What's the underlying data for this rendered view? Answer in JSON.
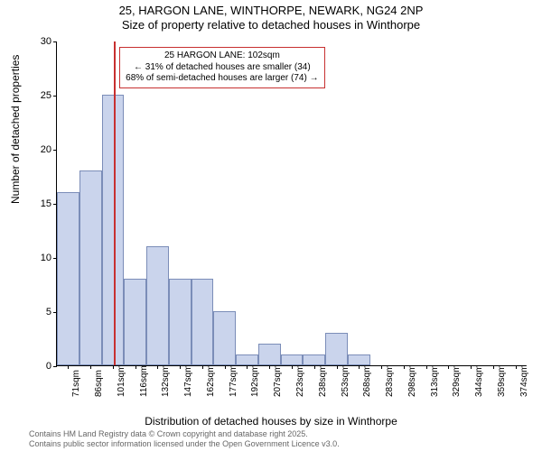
{
  "title": {
    "line1": "25, HARGON LANE, WINTHORPE, NEWARK, NG24 2NP",
    "line2": "Size of property relative to detached houses in Winthorpe"
  },
  "ylabel": "Number of detached properties",
  "xlabel": "Distribution of detached houses by size in Winthorpe",
  "footer": {
    "line1": "Contains HM Land Registry data © Crown copyright and database right 2025.",
    "line2": "Contains public sector information licensed under the Open Government Licence v3.0."
  },
  "chart": {
    "type": "bar",
    "ylim": [
      0,
      30
    ],
    "ytick_step": 5,
    "yticks": [
      0,
      5,
      10,
      15,
      20,
      25,
      30
    ],
    "categories": [
      "71sqm",
      "86sqm",
      "101sqm",
      "116sqm",
      "132sqm",
      "147sqm",
      "162sqm",
      "177sqm",
      "192sqm",
      "207sqm",
      "223sqm",
      "238sqm",
      "253sqm",
      "268sqm",
      "283sqm",
      "298sqm",
      "313sqm",
      "329sqm",
      "344sqm",
      "359sqm",
      "374sqm"
    ],
    "values": [
      16,
      18,
      25,
      8,
      11,
      8,
      8,
      5,
      1,
      2,
      1,
      1,
      3,
      1,
      0,
      0,
      0,
      0,
      0,
      0,
      0
    ],
    "bar_color": "#cad4ec",
    "bar_border_color": "#7b8db8",
    "bar_width_ratio": 1.0,
    "background_color": "#ffffff",
    "axis_color": "#000000",
    "label_fontsize": 12,
    "tick_fontsize": 11,
    "marker": {
      "position_index": 2.05,
      "color": "#c73030"
    },
    "info_box": {
      "border_color": "#c73030",
      "line1": "25 HARGON LANE: 102sqm",
      "line2": "← 31% of detached houses are smaller (34)",
      "line3": "68% of semi-detached houses are larger (74) →"
    }
  }
}
